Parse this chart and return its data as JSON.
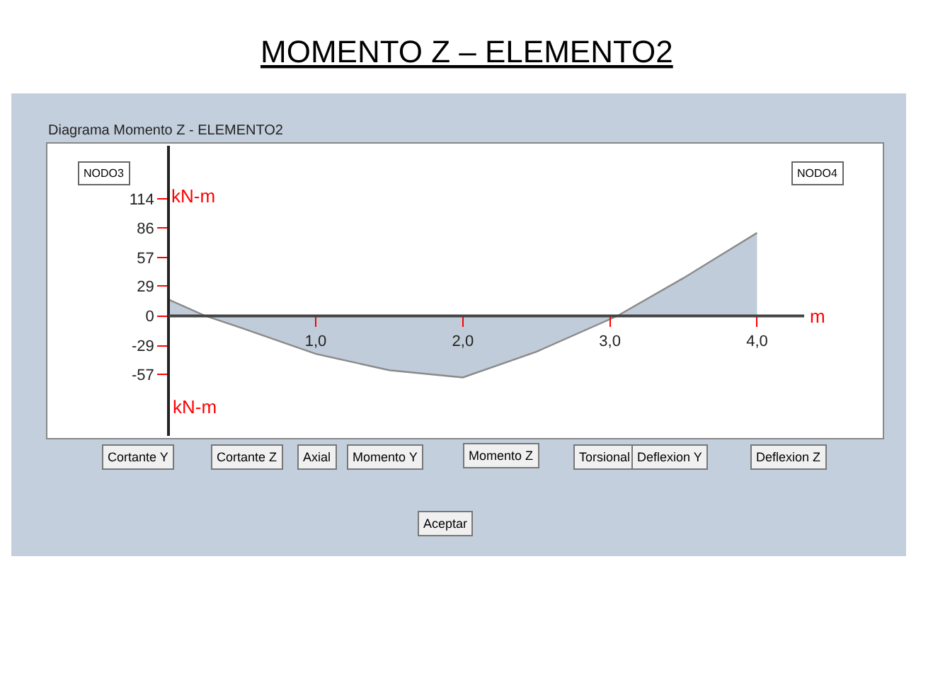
{
  "chart_data": {
    "type": "area",
    "title": "MOMENTO Z – ELEMENTO2",
    "subtitle": "Diagrama Momento Z - ELEMENTO2",
    "xlabel": "m",
    "ylabel": "kN-m",
    "x": [
      0,
      0.25,
      0.5,
      1.0,
      1.5,
      2.0,
      2.5,
      3.05,
      3.5,
      4.0
    ],
    "series": [
      {
        "color": "#c0ccd9",
        "values": [
          16,
          0,
          -12,
          -37,
          -53,
          -60,
          -35,
          0,
          37,
          81
        ]
      }
    ],
    "xlim": [
      -0.8,
      4.84
    ],
    "ylim": [
      -117,
      166
    ],
    "xticks": [
      {
        "value": 1,
        "label": "1,0"
      },
      {
        "value": 2,
        "label": "2,0"
      },
      {
        "value": 3,
        "label": "3,0"
      },
      {
        "value": 4,
        "label": "4,0"
      }
    ],
    "yticks": [
      -57,
      -29,
      0,
      29,
      57,
      86,
      114
    ],
    "annotations": [
      "kN-m",
      "NODO3",
      "NODO4",
      "Cortante Y",
      "Cortante Z",
      "Axial",
      "Momento Y",
      "Momento Z",
      "Torsional",
      "Deflexion Y",
      "Deflexion Z",
      "Aceptar"
    ]
  }
}
